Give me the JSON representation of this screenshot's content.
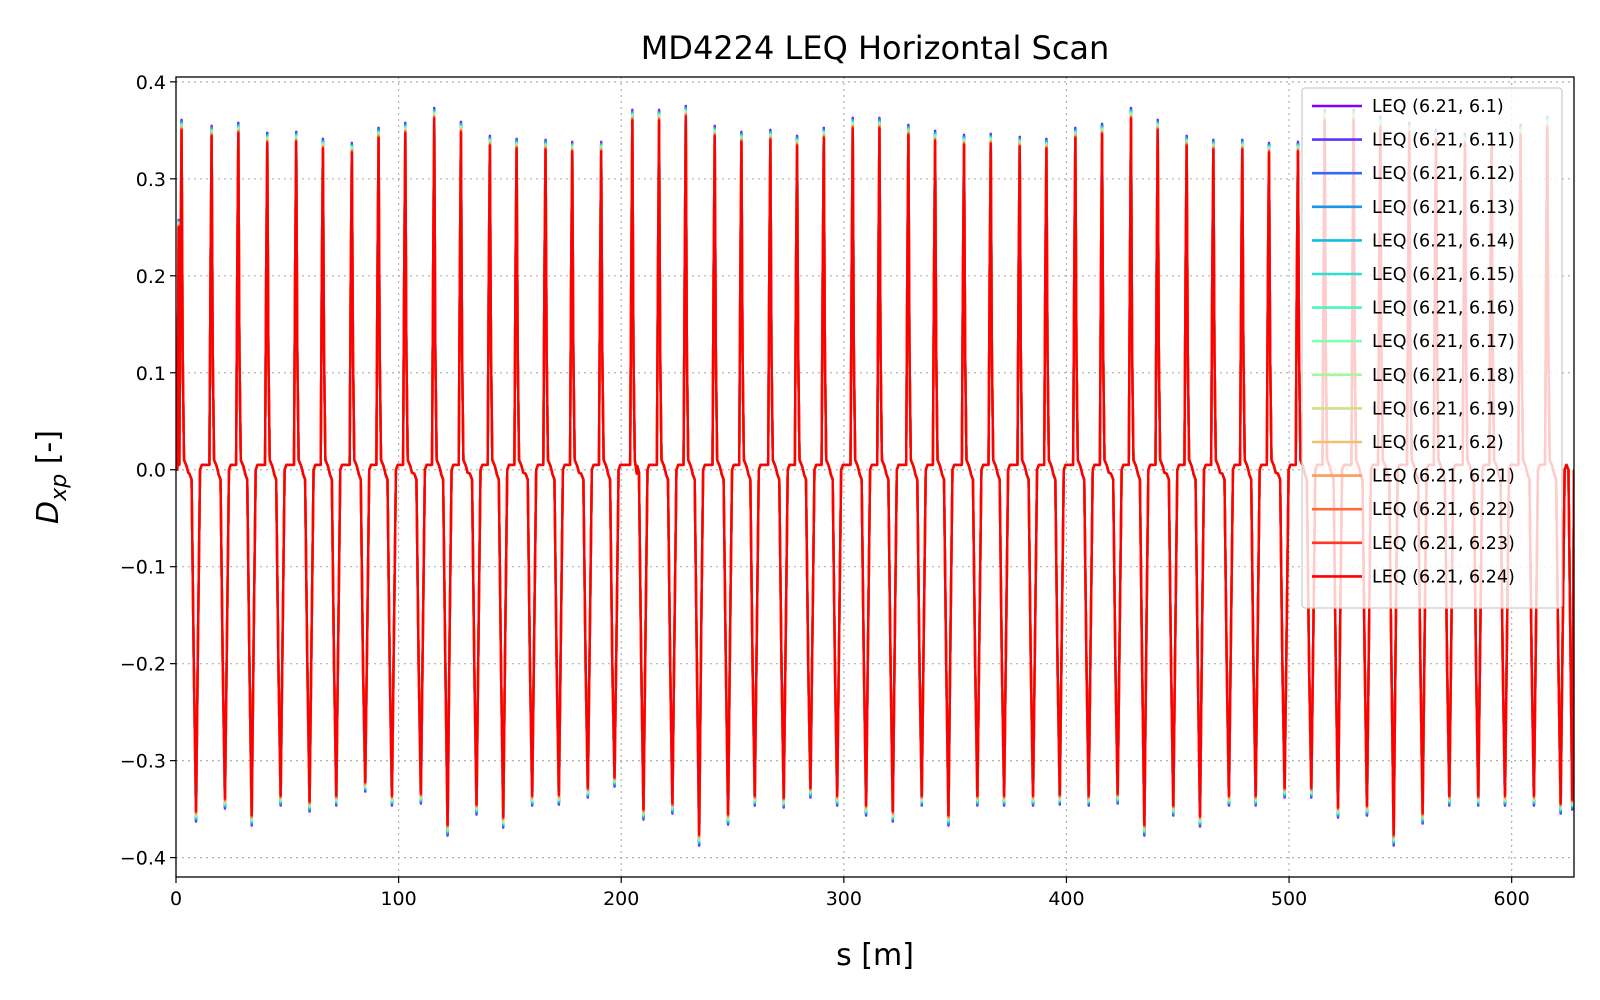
{
  "chart_data": {
    "type": "line",
    "title": "MD4224 LEQ Horizontal Scan",
    "xlabel": "s [m]",
    "ylabel_main": "D",
    "ylabel_sub": "xp",
    "ylabel_unit": "[-]",
    "xlim": [
      0,
      628
    ],
    "ylim": [
      -0.42,
      0.405
    ],
    "xticks": [
      {
        "value": 0,
        "label": "0"
      },
      {
        "value": 100,
        "label": "100"
      },
      {
        "value": 200,
        "label": "200"
      },
      {
        "value": 300,
        "label": "300"
      },
      {
        "value": 400,
        "label": "400"
      },
      {
        "value": 500,
        "label": "500"
      },
      {
        "value": 600,
        "label": "600"
      }
    ],
    "yticks": [
      {
        "value": 0.4,
        "label": "0.4"
      },
      {
        "value": 0.3,
        "label": "0.3"
      },
      {
        "value": 0.2,
        "label": "0.2"
      },
      {
        "value": 0.1,
        "label": "0.1"
      },
      {
        "value": 0.0,
        "label": "0.0"
      },
      {
        "value": -0.1,
        "label": "−0.1"
      },
      {
        "value": -0.2,
        "label": "−0.2"
      },
      {
        "value": -0.3,
        "label": "−0.3"
      },
      {
        "value": -0.4,
        "label": "−0.4"
      }
    ],
    "grid": true,
    "legend_position": "top-right",
    "series": [
      {
        "name": "LEQ (6.21, 6.1)",
        "color": "#8000ff"
      },
      {
        "name": "LEQ (6.21, 6.11)",
        "color": "#5a35fc"
      },
      {
        "name": "LEQ (6.21, 6.12)",
        "color": "#3768f4"
      },
      {
        "name": "LEQ (6.21, 6.13)",
        "color": "#1996e8"
      },
      {
        "name": "LEQ (6.21, 6.14)",
        "color": "#12bee0"
      },
      {
        "name": "LEQ (6.21, 6.15)",
        "color": "#2edfd0"
      },
      {
        "name": "LEQ (6.21, 6.16)",
        "color": "#4ff5c0"
      },
      {
        "name": "LEQ (6.21, 6.17)",
        "color": "#80ffb4"
      },
      {
        "name": "LEQ (6.21, 6.18)",
        "color": "#a8f59c"
      },
      {
        "name": "LEQ (6.21, 6.19)",
        "color": "#d0e08a"
      },
      {
        "name": "LEQ (6.21, 6.2)",
        "color": "#f0c070"
      },
      {
        "name": "LEQ (6.21, 6.21)",
        "color": "#ff9a5a"
      },
      {
        "name": "LEQ (6.21, 6.22)",
        "color": "#ff6a3c"
      },
      {
        "name": "LEQ (6.21, 6.23)",
        "color": "#ff3822"
      },
      {
        "name": "LEQ (6.21, 6.24)",
        "color": "#ff0000"
      }
    ],
    "pos_peaks": [
      {
        "s": 2.5,
        "v": 0.35
      },
      {
        "s": 16,
        "v": 0.344
      },
      {
        "s": 28,
        "v": 0.347
      },
      {
        "s": 41,
        "v": 0.337
      },
      {
        "s": 54,
        "v": 0.338
      },
      {
        "s": 66,
        "v": 0.331
      },
      {
        "s": 79,
        "v": 0.327
      },
      {
        "s": 91,
        "v": 0.342
      },
      {
        "s": 103,
        "v": 0.347
      },
      {
        "s": 116,
        "v": 0.362
      },
      {
        "s": 128,
        "v": 0.348
      },
      {
        "s": 141,
        "v": 0.334
      },
      {
        "s": 153,
        "v": 0.331
      },
      {
        "s": 166,
        "v": 0.33
      },
      {
        "s": 178,
        "v": 0.328
      },
      {
        "s": 191,
        "v": 0.328
      },
      {
        "s": 205,
        "v": 0.36
      },
      {
        "s": 217,
        "v": 0.36
      },
      {
        "s": 229,
        "v": 0.364
      },
      {
        "s": 242,
        "v": 0.344
      },
      {
        "s": 254,
        "v": 0.338
      },
      {
        "s": 267,
        "v": 0.34
      },
      {
        "s": 279,
        "v": 0.334
      },
      {
        "s": 291,
        "v": 0.342
      },
      {
        "s": 304,
        "v": 0.352
      },
      {
        "s": 316,
        "v": 0.352
      },
      {
        "s": 329,
        "v": 0.345
      },
      {
        "s": 341,
        "v": 0.339
      },
      {
        "s": 354,
        "v": 0.335
      },
      {
        "s": 366,
        "v": 0.336
      },
      {
        "s": 379,
        "v": 0.333
      },
      {
        "s": 391,
        "v": 0.331
      },
      {
        "s": 404,
        "v": 0.342
      },
      {
        "s": 416,
        "v": 0.346
      },
      {
        "s": 429,
        "v": 0.362
      },
      {
        "s": 441,
        "v": 0.35
      },
      {
        "s": 454,
        "v": 0.334
      },
      {
        "s": 466,
        "v": 0.33
      },
      {
        "s": 479,
        "v": 0.33
      },
      {
        "s": 491,
        "v": 0.327
      },
      {
        "s": 504,
        "v": 0.328
      },
      {
        "s": 516,
        "v": 0.36
      },
      {
        "s": 529,
        "v": 0.36
      },
      {
        "s": 541,
        "v": 0.353
      },
      {
        "s": 554,
        "v": 0.347
      },
      {
        "s": 566,
        "v": 0.34
      },
      {
        "s": 579,
        "v": 0.336
      },
      {
        "s": 591,
        "v": 0.332
      },
      {
        "s": 604,
        "v": 0.345
      },
      {
        "s": 616,
        "v": 0.353
      }
    ],
    "neg_peaks": [
      {
        "s": 9,
        "v": -0.352
      },
      {
        "s": 22,
        "v": -0.339
      },
      {
        "s": 34,
        "v": -0.356
      },
      {
        "s": 47,
        "v": -0.336
      },
      {
        "s": 60,
        "v": -0.342
      },
      {
        "s": 72,
        "v": -0.336
      },
      {
        "s": 85,
        "v": -0.322
      },
      {
        "s": 97,
        "v": -0.336
      },
      {
        "s": 110,
        "v": -0.334
      },
      {
        "s": 122,
        "v": -0.366
      },
      {
        "s": 135,
        "v": -0.345
      },
      {
        "s": 147,
        "v": -0.358
      },
      {
        "s": 160,
        "v": -0.336
      },
      {
        "s": 172,
        "v": -0.335
      },
      {
        "s": 185,
        "v": -0.328
      },
      {
        "s": 197,
        "v": -0.317
      },
      {
        "s": 210,
        "v": -0.35
      },
      {
        "s": 223,
        "v": -0.344
      },
      {
        "s": 235,
        "v": -0.376
      },
      {
        "s": 248,
        "v": -0.355
      },
      {
        "s": 260,
        "v": -0.336
      },
      {
        "s": 273,
        "v": -0.338
      },
      {
        "s": 285,
        "v": -0.328
      },
      {
        "s": 297,
        "v": -0.336
      },
      {
        "s": 310,
        "v": -0.346
      },
      {
        "s": 322,
        "v": -0.352
      },
      {
        "s": 335,
        "v": -0.336
      },
      {
        "s": 347,
        "v": -0.356
      },
      {
        "s": 360,
        "v": -0.336
      },
      {
        "s": 372,
        "v": -0.336
      },
      {
        "s": 385,
        "v": -0.336
      },
      {
        "s": 397,
        "v": -0.335
      },
      {
        "s": 410,
        "v": -0.336
      },
      {
        "s": 423,
        "v": -0.334
      },
      {
        "s": 435,
        "v": -0.366
      },
      {
        "s": 448,
        "v": -0.346
      },
      {
        "s": 460,
        "v": -0.357
      },
      {
        "s": 473,
        "v": -0.336
      },
      {
        "s": 485,
        "v": -0.336
      },
      {
        "s": 498,
        "v": -0.328
      },
      {
        "s": 510,
        "v": -0.328
      },
      {
        "s": 522,
        "v": -0.348
      },
      {
        "s": 535,
        "v": -0.346
      },
      {
        "s": 547,
        "v": -0.376
      },
      {
        "s": 560,
        "v": -0.354
      },
      {
        "s": 572,
        "v": -0.336
      },
      {
        "s": 585,
        "v": -0.336
      },
      {
        "s": 597,
        "v": -0.336
      },
      {
        "s": 610,
        "v": -0.336
      },
      {
        "s": 622,
        "v": -0.344
      }
    ]
  }
}
